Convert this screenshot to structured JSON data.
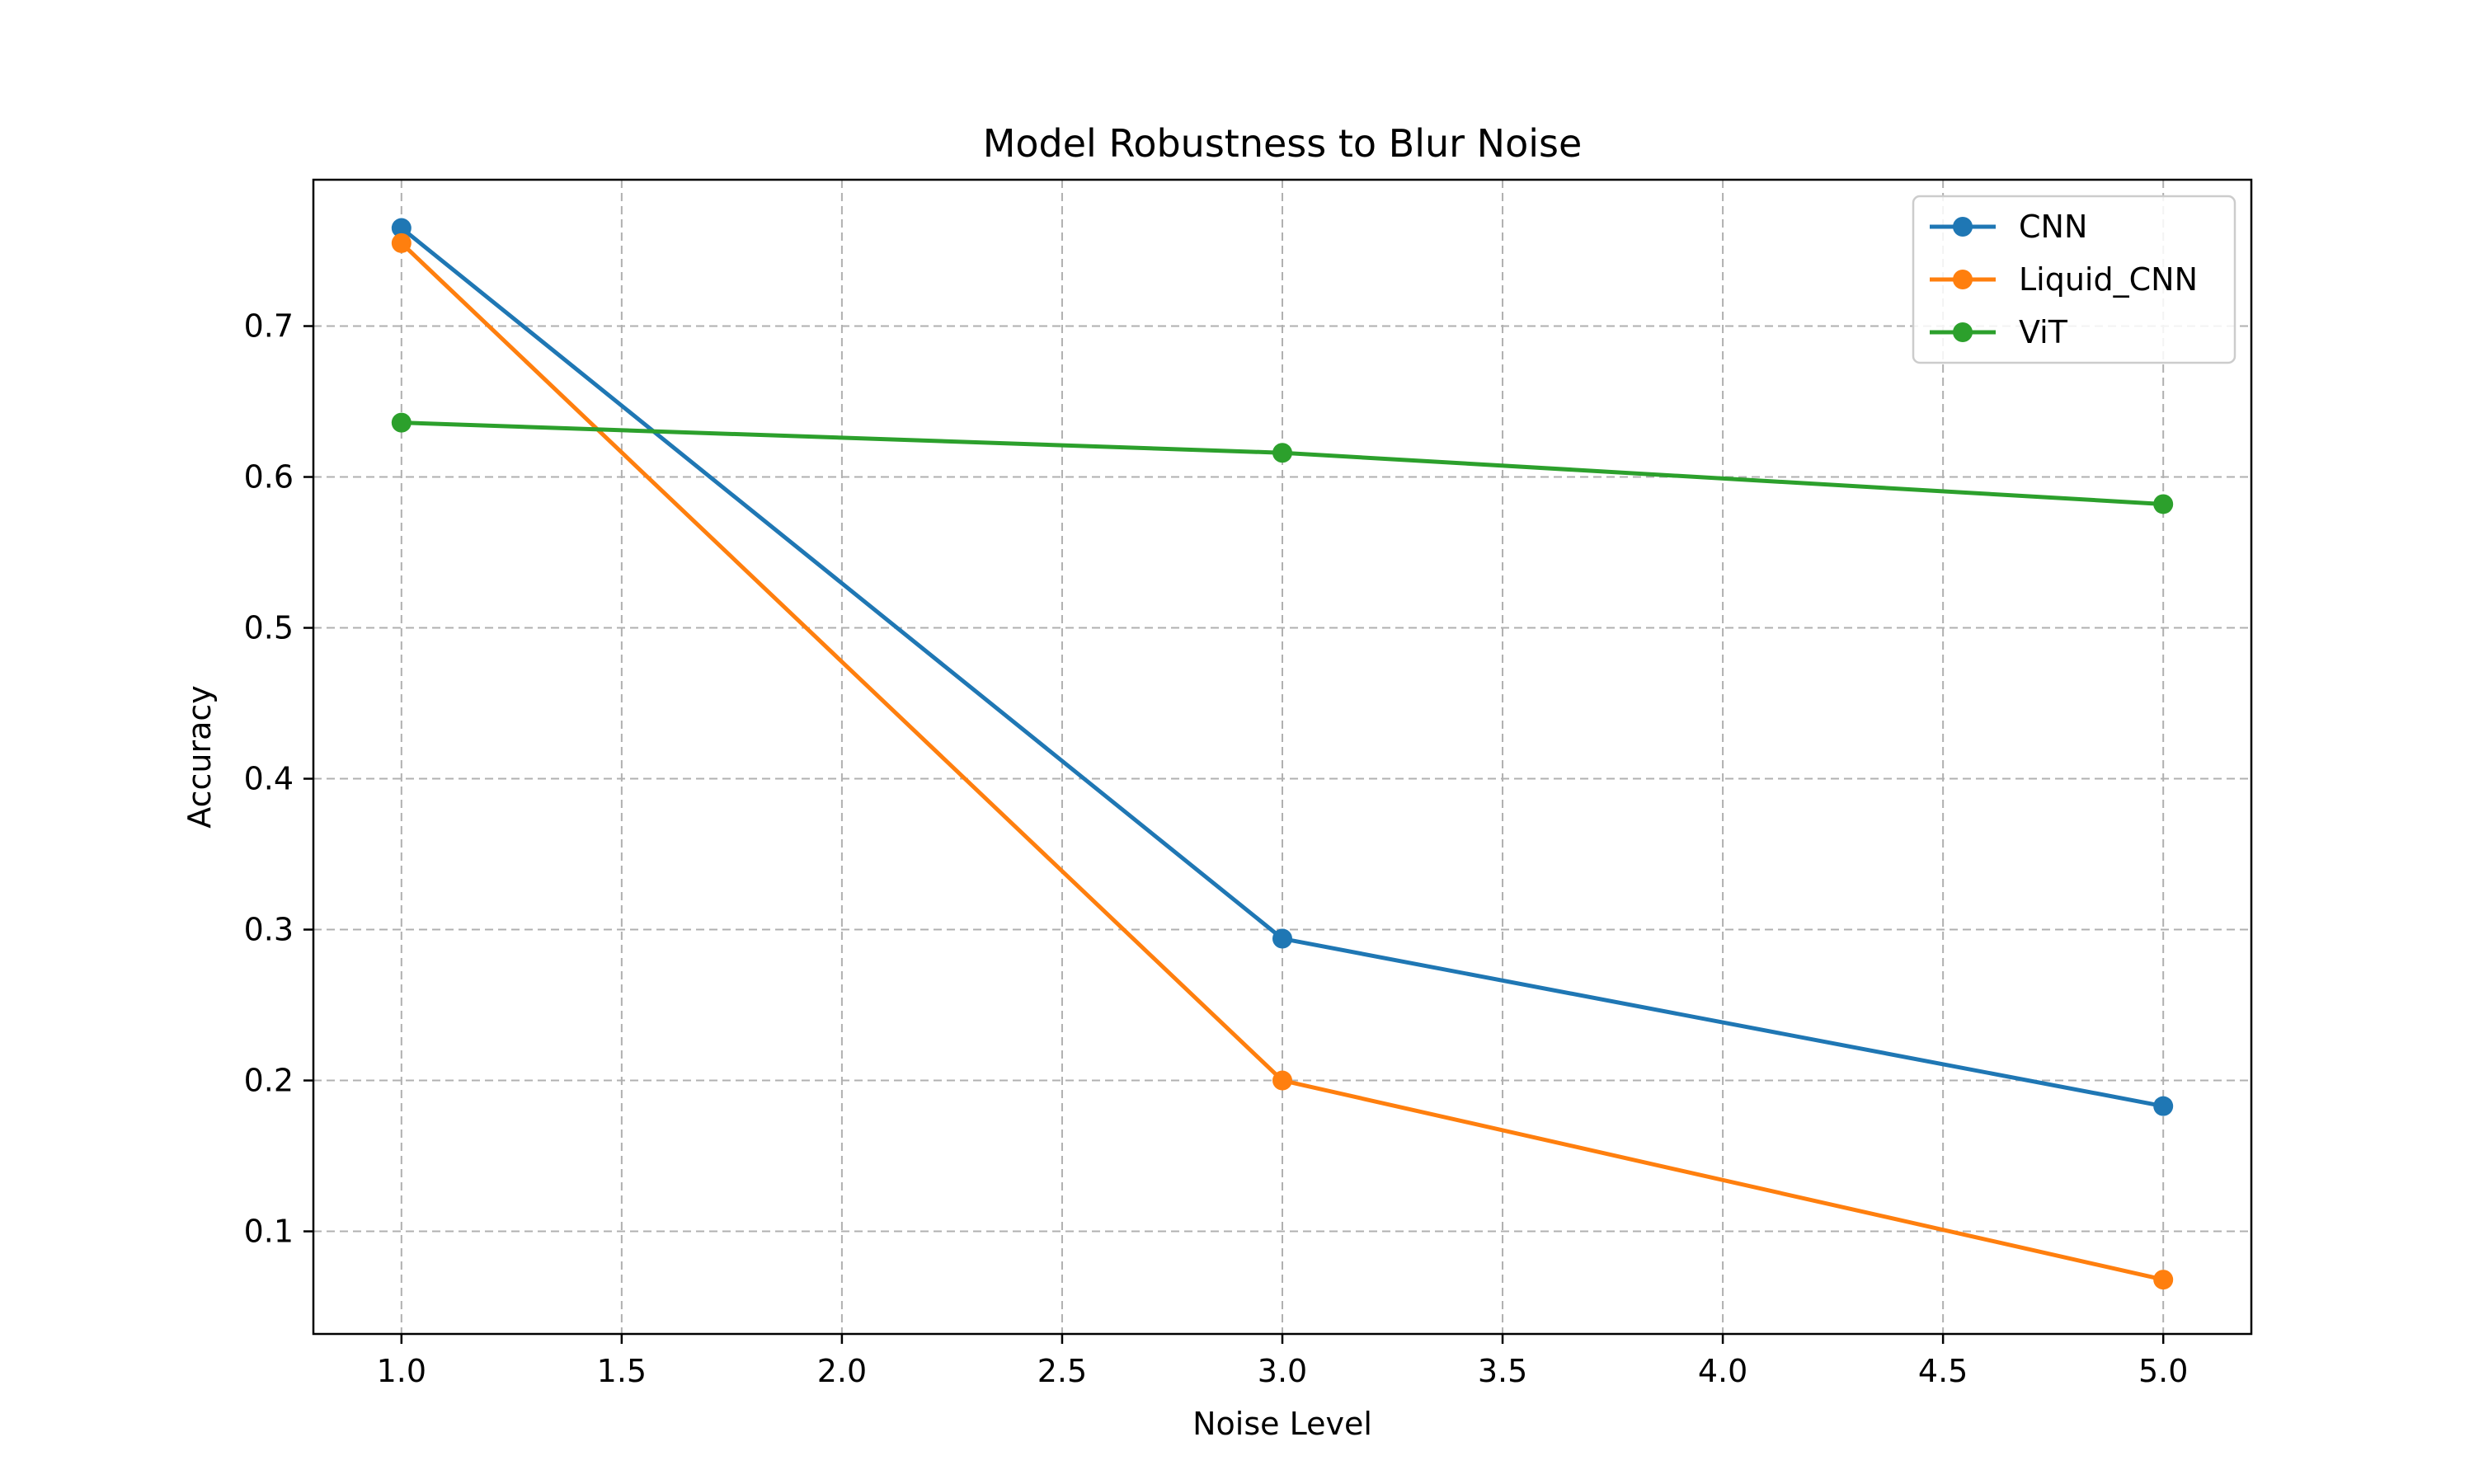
{
  "chart_data": {
    "type": "line",
    "title": "Model Robustness to Blur Noise",
    "xlabel": "Noise Level",
    "ylabel": "Accuracy",
    "xlim": [
      0.8,
      5.2
    ],
    "ylim": [
      0.032,
      0.797
    ],
    "xticks": [
      "1.0",
      "1.5",
      "2.0",
      "2.5",
      "3.0",
      "3.5",
      "4.0",
      "4.5",
      "5.0"
    ],
    "yticks": [
      "0.1",
      "0.2",
      "0.3",
      "0.4",
      "0.5",
      "0.6",
      "0.7"
    ],
    "grid": true,
    "legend_position": "top-right",
    "x": [
      1.0,
      3.0,
      5.0
    ],
    "series": [
      {
        "name": "CNN",
        "color": "#1f77b4",
        "values": [
          0.765,
          0.294,
          0.183
        ]
      },
      {
        "name": "Liquid_CNN",
        "color": "#ff7f0e",
        "values": [
          0.755,
          0.2,
          0.068
        ]
      },
      {
        "name": "ViT",
        "color": "#2ca02c",
        "values": [
          0.636,
          0.616,
          0.582
        ]
      }
    ]
  }
}
